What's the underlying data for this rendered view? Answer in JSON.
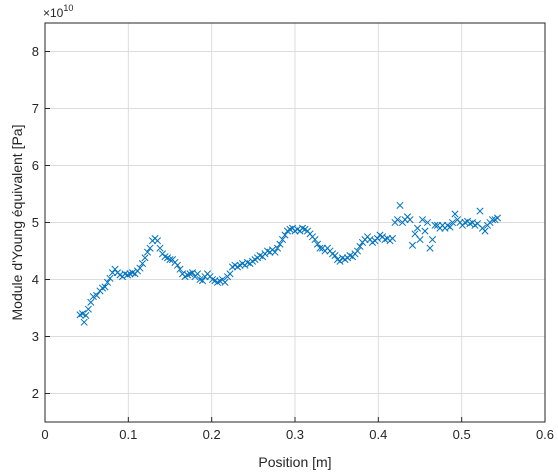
{
  "chart_data": {
    "type": "scatter",
    "xlabel": "Position [m]",
    "ylabel": "Module d'Young équivalent [Pa]",
    "y_exponent_label": "×10",
    "y_exponent_power": "10",
    "xlim": [
      0,
      0.6
    ],
    "ylim": [
      1.5,
      8.5
    ],
    "xticks": [
      "0",
      "0.1",
      "0.2",
      "0.3",
      "0.4",
      "0.5",
      "0.6"
    ],
    "yticks": [
      "2",
      "3",
      "4",
      "5",
      "6",
      "7",
      "8"
    ],
    "xtick_values": [
      0,
      0.1,
      0.2,
      0.3,
      0.4,
      0.5,
      0.6
    ],
    "ytick_values": [
      2,
      3,
      4,
      5,
      6,
      7,
      8
    ],
    "grid": true,
    "marker": "x",
    "color": "#0072BD",
    "points": [
      [
        0.042,
        3.38
      ],
      [
        0.045,
        3.4
      ],
      [
        0.047,
        3.25
      ],
      [
        0.049,
        3.37
      ],
      [
        0.052,
        3.48
      ],
      [
        0.055,
        3.6
      ],
      [
        0.058,
        3.7
      ],
      [
        0.062,
        3.72
      ],
      [
        0.066,
        3.8
      ],
      [
        0.069,
        3.85
      ],
      [
        0.072,
        3.87
      ],
      [
        0.075,
        3.95
      ],
      [
        0.078,
        4.02
      ],
      [
        0.081,
        4.12
      ],
      [
        0.084,
        4.18
      ],
      [
        0.087,
        4.12
      ],
      [
        0.09,
        4.08
      ],
      [
        0.093,
        4.05
      ],
      [
        0.096,
        4.1
      ],
      [
        0.099,
        4.08
      ],
      [
        0.102,
        4.1
      ],
      [
        0.105,
        4.12
      ],
      [
        0.108,
        4.1
      ],
      [
        0.111,
        4.15
      ],
      [
        0.114,
        4.2
      ],
      [
        0.117,
        4.28
      ],
      [
        0.12,
        4.38
      ],
      [
        0.123,
        4.48
      ],
      [
        0.126,
        4.55
      ],
      [
        0.129,
        4.68
      ],
      [
        0.132,
        4.72
      ],
      [
        0.135,
        4.68
      ],
      [
        0.138,
        4.55
      ],
      [
        0.141,
        4.45
      ],
      [
        0.144,
        4.4
      ],
      [
        0.147,
        4.38
      ],
      [
        0.15,
        4.35
      ],
      [
        0.153,
        4.35
      ],
      [
        0.156,
        4.3
      ],
      [
        0.159,
        4.25
      ],
      [
        0.162,
        4.18
      ],
      [
        0.165,
        4.1
      ],
      [
        0.168,
        4.05
      ],
      [
        0.171,
        4.08
      ],
      [
        0.174,
        4.1
      ],
      [
        0.177,
        4.12
      ],
      [
        0.18,
        4.05
      ],
      [
        0.183,
        4.1
      ],
      [
        0.186,
        4.0
      ],
      [
        0.189,
        3.98
      ],
      [
        0.192,
        4.05
      ],
      [
        0.195,
        4.1
      ],
      [
        0.198,
        4.05
      ],
      [
        0.201,
        4.0
      ],
      [
        0.204,
        3.98
      ],
      [
        0.207,
        3.95
      ],
      [
        0.21,
        3.97
      ],
      [
        0.213,
        4.0
      ],
      [
        0.216,
        3.95
      ],
      [
        0.219,
        4.05
      ],
      [
        0.222,
        4.1
      ],
      [
        0.225,
        4.22
      ],
      [
        0.228,
        4.25
      ],
      [
        0.231,
        4.22
      ],
      [
        0.234,
        4.25
      ],
      [
        0.237,
        4.28
      ],
      [
        0.24,
        4.25
      ],
      [
        0.243,
        4.3
      ],
      [
        0.246,
        4.28
      ],
      [
        0.249,
        4.32
      ],
      [
        0.252,
        4.35
      ],
      [
        0.255,
        4.38
      ],
      [
        0.258,
        4.42
      ],
      [
        0.261,
        4.4
      ],
      [
        0.264,
        4.45
      ],
      [
        0.267,
        4.5
      ],
      [
        0.27,
        4.48
      ],
      [
        0.273,
        4.52
      ],
      [
        0.276,
        4.48
      ],
      [
        0.279,
        4.55
      ],
      [
        0.282,
        4.62
      ],
      [
        0.285,
        4.7
      ],
      [
        0.288,
        4.78
      ],
      [
        0.291,
        4.85
      ],
      [
        0.294,
        4.88
      ],
      [
        0.297,
        4.9
      ],
      [
        0.3,
        4.85
      ],
      [
        0.303,
        4.88
      ],
      [
        0.306,
        4.85
      ],
      [
        0.309,
        4.9
      ],
      [
        0.312,
        4.88
      ],
      [
        0.315,
        4.85
      ],
      [
        0.318,
        4.8
      ],
      [
        0.321,
        4.75
      ],
      [
        0.324,
        4.7
      ],
      [
        0.327,
        4.62
      ],
      [
        0.33,
        4.55
      ],
      [
        0.333,
        4.55
      ],
      [
        0.336,
        4.5
      ],
      [
        0.339,
        4.55
      ],
      [
        0.342,
        4.5
      ],
      [
        0.345,
        4.45
      ],
      [
        0.348,
        4.42
      ],
      [
        0.351,
        4.35
      ],
      [
        0.354,
        4.32
      ],
      [
        0.357,
        4.38
      ],
      [
        0.36,
        4.35
      ],
      [
        0.363,
        4.38
      ],
      [
        0.366,
        4.42
      ],
      [
        0.369,
        4.4
      ],
      [
        0.372,
        4.45
      ],
      [
        0.375,
        4.5
      ],
      [
        0.378,
        4.58
      ],
      [
        0.381,
        4.65
      ],
      [
        0.384,
        4.7
      ],
      [
        0.387,
        4.75
      ],
      [
        0.39,
        4.7
      ],
      [
        0.393,
        4.65
      ],
      [
        0.396,
        4.68
      ],
      [
        0.399,
        4.72
      ],
      [
        0.402,
        4.78
      ],
      [
        0.405,
        4.75
      ],
      [
        0.408,
        4.7
      ],
      [
        0.411,
        4.72
      ],
      [
        0.414,
        4.68
      ],
      [
        0.417,
        4.72
      ],
      [
        0.42,
        5.0
      ],
      [
        0.423,
        5.05
      ],
      [
        0.426,
        5.3
      ],
      [
        0.429,
        5.0
      ],
      [
        0.432,
        5.05
      ],
      [
        0.435,
        5.1
      ],
      [
        0.438,
        5.05
      ],
      [
        0.441,
        4.6
      ],
      [
        0.444,
        4.8
      ],
      [
        0.447,
        4.9
      ],
      [
        0.45,
        4.7
      ],
      [
        0.453,
        5.05
      ],
      [
        0.456,
        4.85
      ],
      [
        0.459,
        5.0
      ],
      [
        0.462,
        4.55
      ],
      [
        0.465,
        4.7
      ],
      [
        0.468,
        4.95
      ],
      [
        0.471,
        4.95
      ],
      [
        0.474,
        4.9
      ],
      [
        0.477,
        4.95
      ],
      [
        0.48,
        4.9
      ],
      [
        0.483,
        4.95
      ],
      [
        0.486,
        4.92
      ],
      [
        0.489,
        5.0
      ],
      [
        0.492,
        5.15
      ],
      [
        0.495,
        5.05
      ],
      [
        0.498,
        5.0
      ],
      [
        0.501,
        4.95
      ],
      [
        0.504,
        5.0
      ],
      [
        0.507,
        5.02
      ],
      [
        0.51,
        4.98
      ],
      [
        0.513,
        5.0
      ],
      [
        0.516,
        4.95
      ],
      [
        0.519,
        4.98
      ],
      [
        0.522,
        5.2
      ],
      [
        0.525,
        4.9
      ],
      [
        0.528,
        4.85
      ],
      [
        0.531,
        4.95
      ],
      [
        0.534,
        5.0
      ],
      [
        0.537,
        5.05
      ],
      [
        0.54,
        5.05
      ],
      [
        0.543,
        5.08
      ]
    ]
  }
}
